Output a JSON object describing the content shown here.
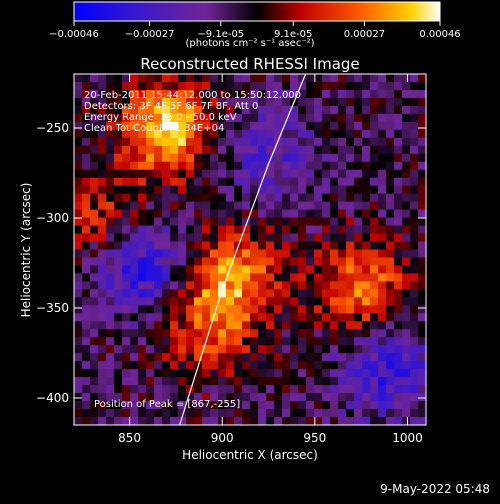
{
  "chart_data": {
    "type": "heatmap",
    "title": "Reconstructed RHESSI Image",
    "xlabel": "Heliocentric X (arcsec)",
    "ylabel": "Heliocentric Y (arcsec)",
    "xlim": [
      820,
      1010
    ],
    "ylim": [
      -415,
      -220
    ],
    "xticks": [
      850,
      900,
      950,
      1000
    ],
    "yticks": [
      -250,
      -300,
      -350,
      -400
    ],
    "colorbar": {
      "ticks": [
        "-0.00046",
        "-0.00027",
        "-9.1e-05",
        "9.1e-05",
        "0.00027",
        "0.00046"
      ],
      "label": "(photons cm⁻² s⁻¹ asec⁻²)",
      "min": -0.00046,
      "max": 0.00046
    },
    "annotations": [
      "20-Feb-2011 15:44:12.000 to 15:50:12.000",
      "Detectors: 3F 4F 5F 6F 7F 8F, Att 0",
      "Energy Range: 25.0 - 50.0 keV",
      "Clean    Tot Counts: 1.34E+04"
    ],
    "peak_label": "Position of Peak = [867,-255]",
    "peak": {
      "x": 867,
      "y": -255
    },
    "limb_curve": [
      [
        877,
        -415
      ],
      [
        900,
        -340
      ],
      [
        925,
        -270
      ],
      [
        945,
        -220
      ]
    ],
    "hotspots": [
      {
        "x": 870,
        "y": -250,
        "value": 0.00046
      },
      {
        "x": 905,
        "y": -332,
        "value": 0.00035
      },
      {
        "x": 975,
        "y": -338,
        "value": 0.00032
      },
      {
        "x": 892,
        "y": -362,
        "value": 0.00025
      },
      {
        "x": 835,
        "y": -300,
        "value": 0.0002
      }
    ],
    "coldspots": [
      {
        "x": 857,
        "y": -327,
        "value": -0.0003
      },
      {
        "x": 990,
        "y": -385,
        "value": -0.00025
      },
      {
        "x": 925,
        "y": -265,
        "value": -0.00018
      }
    ]
  },
  "footer": {
    "date": "9-May-2022 05:48"
  }
}
